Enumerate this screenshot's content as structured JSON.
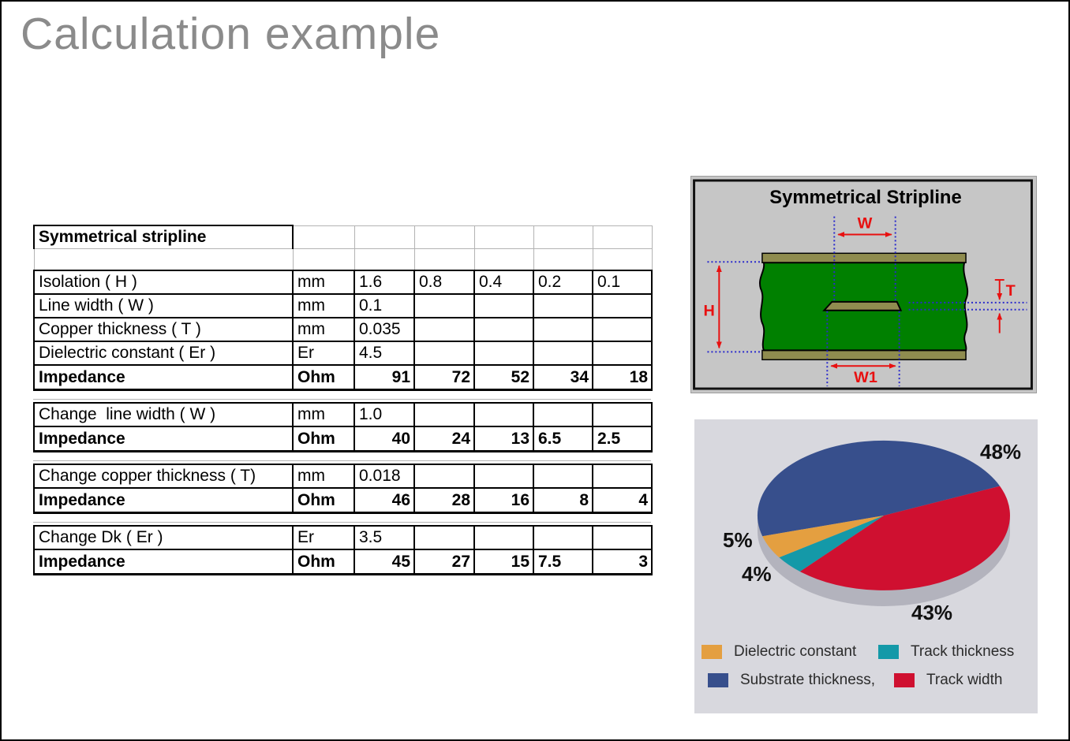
{
  "slide": {
    "title": "Calculation example"
  },
  "table": {
    "sections": [
      {
        "rows": [
          {
            "type": "title",
            "cells": [
              "Symmetrical stripline",
              "",
              "",
              "",
              "",
              "",
              ""
            ]
          },
          {
            "type": "spacer",
            "cells": [
              "",
              "",
              "",
              "",
              "",
              "",
              ""
            ]
          },
          {
            "type": "data",
            "cells": [
              "Isolation ( H )",
              "mm",
              "1.6",
              "0.8",
              "0.4",
              "0.2",
              "0.1"
            ]
          },
          {
            "type": "data",
            "cells": [
              "Line width ( W )",
              "mm",
              "0.1",
              "",
              "",
              "",
              ""
            ]
          },
          {
            "type": "data",
            "cells": [
              "Copper thickness ( T )",
              "mm",
              "0.035",
              "",
              "",
              "",
              ""
            ]
          },
          {
            "type": "data",
            "cells": [
              "Dielectric constant ( Er )",
              "Er",
              "4.5",
              "",
              "",
              "",
              ""
            ]
          },
          {
            "type": "impedance",
            "cells": [
              "Impedance",
              "Ohm",
              "91",
              "72",
              "52",
              "34",
              "18"
            ],
            "align": [
              "l",
              "l",
              "r",
              "r",
              "r",
              "r",
              "r"
            ]
          }
        ]
      },
      {
        "rows": [
          {
            "type": "data",
            "cells": [
              "Change  line width ( W )",
              "mm",
              "1.0",
              "",
              "",
              "",
              ""
            ]
          },
          {
            "type": "impedance",
            "cells": [
              "Impedance",
              "Ohm",
              "40",
              "24",
              "13",
              "6.5",
              "2.5"
            ],
            "align": [
              "l",
              "l",
              "r",
              "r",
              "r",
              "l",
              "l"
            ]
          }
        ]
      },
      {
        "rows": [
          {
            "type": "data",
            "cells": [
              "Change copper thickness ( T)",
              "mm",
              "0.018",
              "",
              "",
              "",
              ""
            ]
          },
          {
            "type": "impedance",
            "cells": [
              "Impedance",
              "Ohm",
              "46",
              "28",
              "16",
              "8",
              "4"
            ],
            "align": [
              "l",
              "l",
              "r",
              "r",
              "r",
              "r",
              "r"
            ]
          }
        ]
      },
      {
        "rows": [
          {
            "type": "data",
            "cells": [
              "Change Dk ( Er )",
              "Er",
              "3.5",
              "",
              "",
              "",
              ""
            ]
          },
          {
            "type": "impedance",
            "cells": [
              "Impedance",
              "Ohm",
              "45",
              "27",
              "15",
              "7.5",
              "3"
            ],
            "align": [
              "l",
              "l",
              "r",
              "r",
              "r",
              "l",
              "r"
            ]
          }
        ]
      }
    ]
  },
  "diagram": {
    "title": "Symmetrical Stripline",
    "labels": {
      "w": "W",
      "h": "H",
      "t": "T",
      "w1": "W1"
    },
    "colors": {
      "substrate": "#008000",
      "copper": "#8f8c4f",
      "panel": "#c6c6c6",
      "dimension": "#e81010",
      "guide": "#2a2acc"
    }
  },
  "chart_data": {
    "type": "pie",
    "style": "3d",
    "start_angle_deg": 196,
    "direction": "clockwise",
    "base_color": "#b3b3bd",
    "background": "#d8d8de",
    "slices": [
      {
        "label": "Substrate thickness",
        "value": 48,
        "pct_label": "48%",
        "color": "#374f8c"
      },
      {
        "label": "Track width",
        "value": 43,
        "pct_label": "43%",
        "color": "#cf1030"
      },
      {
        "label": "Track thickness",
        "value": 4,
        "pct_label": "4%",
        "color": "#1499a8"
      },
      {
        "label": "Dielectric constant",
        "value": 5,
        "pct_label": "5%",
        "color": "#e49f40"
      }
    ],
    "legend": [
      {
        "label": "Dielectric constant",
        "color": "#e49f40"
      },
      {
        "label": "Track thickness",
        "color": "#1499a8"
      },
      {
        "label": "Substrate thickness,",
        "color": "#374f8c"
      },
      {
        "label": "Track width",
        "color": "#cf1030"
      }
    ],
    "legend_position": "bottom"
  }
}
